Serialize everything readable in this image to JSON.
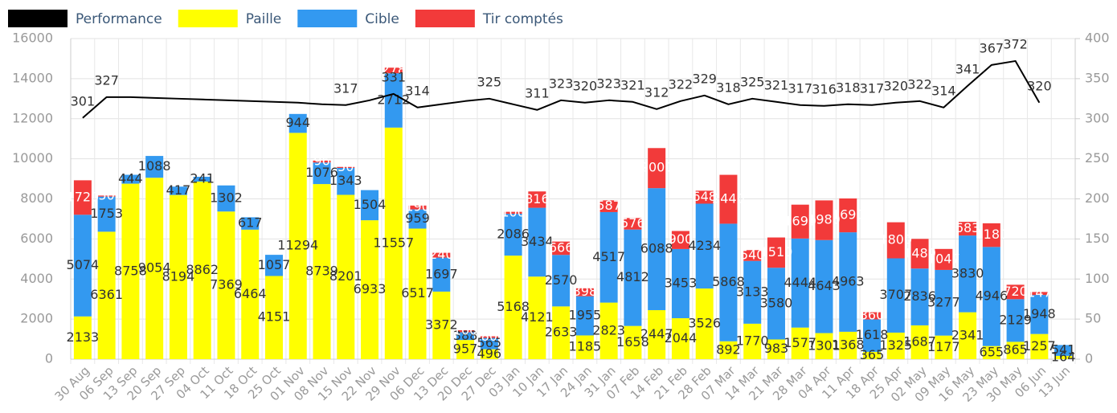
{
  "chart_data": {
    "type": "bar-line",
    "categories": [
      "30 Aug",
      "06 Sep",
      "13 Sep",
      "20 Sep",
      "27 Sep",
      "04 Oct",
      "11 Oct",
      "18 Oct",
      "25 Oct",
      "01 Nov",
      "08 Nov",
      "15 Nov",
      "22 Nov",
      "29 Nov",
      "06 Dec",
      "13 Dec",
      "20 Dec",
      "27 Dec",
      "03 Jan",
      "10 Jan",
      "17 Jan",
      "24 Jan",
      "31 Jan",
      "07 Feb",
      "14 Feb",
      "21 Feb",
      "28 Feb",
      "07 Mar",
      "14 Mar",
      "21 Mar",
      "28 Mar",
      "04 Apr",
      "11 Apr",
      "18 Apr",
      "25 Apr",
      "02 May",
      "09 May",
      "16 May",
      "23 May",
      "30 May",
      "06 Jun",
      "13 Jun"
    ],
    "series": [
      {
        "name": "Performance",
        "color": "#000000",
        "axis": "y2",
        "kind": "line",
        "values": [
          301,
          327,
          327,
          326,
          325,
          324,
          323,
          322,
          321,
          320,
          318,
          317,
          323,
          331,
          314,
          318,
          322,
          325,
          318,
          311,
          323,
          320,
          323,
          321,
          312,
          322,
          329,
          318,
          325,
          321,
          317,
          316,
          318,
          317,
          320,
          322,
          314,
          341,
          367,
          372,
          320,
          null
        ],
        "value_labels": [
          "301",
          "327",
          null,
          null,
          null,
          null,
          null,
          null,
          null,
          null,
          null,
          "317",
          null,
          "331",
          "314",
          null,
          null,
          "325",
          null,
          "311",
          "323",
          "320",
          "323",
          "321",
          "312",
          "322",
          "329",
          "318",
          "325",
          "321",
          "317",
          "316",
          "318",
          "317",
          "320",
          "322",
          "314",
          "341",
          "367",
          "372",
          "320",
          null
        ]
      },
      {
        "name": "Paille",
        "color": "#ffff00",
        "kind": "bar",
        "values": [
          2133,
          6361,
          8758,
          9054,
          8194,
          8862,
          7369,
          6464,
          4151,
          11294,
          8739,
          8201,
          6933,
          11557,
          6517,
          3372,
          957,
          496,
          5168,
          4121,
          2633,
          1185,
          2823,
          1658,
          2447,
          2044,
          3526,
          892,
          1770,
          983,
          1577,
          1301,
          1368,
          365,
          1325,
          1687,
          1177,
          2341,
          655,
          865,
          1257,
          164
        ]
      },
      {
        "name": "Cible",
        "color": "#3399f0",
        "kind": "bar",
        "values": [
          5074,
          1753,
          444,
          1088,
          417,
          241,
          1302,
          617,
          1057,
          944,
          1076,
          1343,
          1504,
          2712,
          959,
          1697,
          388,
          565,
          2086,
          3434,
          2570,
          1955,
          4517,
          4812,
          6088,
          3453,
          4234,
          5868,
          3133,
          3580,
          4444,
          4643,
          4963,
          1618,
          3707,
          2836,
          3277,
          3830,
          4946,
          2129,
          1948,
          541
        ]
      },
      {
        "name": "Tir comptés",
        "color": "#f23a3a",
        "kind": "bar",
        "values": [
          1720,
          50,
          null,
          null,
          null,
          null,
          null,
          null,
          null,
          null,
          96,
          50,
          null,
          278,
          190,
          240,
          100,
          80,
          100,
          816,
          666,
          398,
          587,
          576,
          2000,
          900,
          648,
          2440,
          540,
          1510,
          1690,
          1980,
          1690,
          360,
          1800,
          1480,
          1047,
          683,
          1180,
          720,
          147,
          null
        ]
      }
    ],
    "ylim": [
      0,
      16000
    ],
    "yticks": [
      0,
      2000,
      4000,
      6000,
      8000,
      10000,
      12000,
      14000,
      16000
    ],
    "y2lim": [
      0,
      400
    ],
    "y2ticks": [
      0,
      50,
      100,
      150,
      200,
      250,
      300,
      350,
      400
    ],
    "grid": true,
    "legend": "top-left"
  }
}
